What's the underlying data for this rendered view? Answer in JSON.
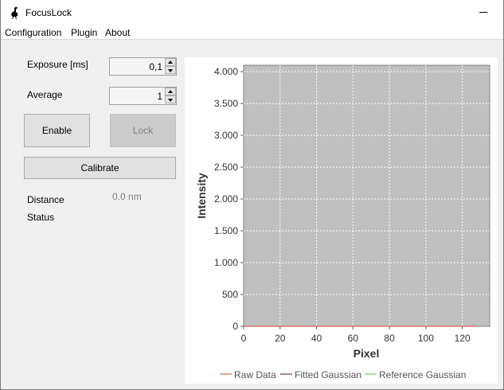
{
  "window": {
    "title": "FocusLock"
  },
  "menu": {
    "items": [
      "Configuration",
      "Plugin",
      "About"
    ]
  },
  "controls": {
    "exposure_label": "Exposure [ms]",
    "exposure_value": "0,1",
    "average_label": "Average",
    "average_value": "1",
    "enable_label": "Enable",
    "lock_label": "Lock",
    "calibrate_label": "Calibrate",
    "distance_label": "Distance",
    "distance_value": "0.0 nm",
    "status_label": "Status"
  },
  "colors": {
    "plot_bg": "#c0c0c0",
    "raw_data": "#e06060",
    "fitted_gaussian": "#6a3a5a",
    "reference_gaussian": "#66cc66"
  },
  "chart_data": {
    "type": "line",
    "xlabel": "Pixel",
    "ylabel": "Intensity",
    "xlim": [
      0,
      135
    ],
    "ylim": [
      0,
      4100
    ],
    "x_ticks": [
      0,
      20,
      40,
      60,
      80,
      100,
      120
    ],
    "y_ticks": [
      0,
      500,
      1000,
      1500,
      2000,
      2500,
      3000,
      3500,
      4000
    ],
    "y_tick_labels": [
      "0",
      "500",
      "1.000",
      "1.500",
      "2.000",
      "2.500",
      "3.000",
      "3.500",
      "4.000"
    ],
    "grid": true,
    "legend_position": "bottom",
    "series": [
      {
        "name": "Raw Data",
        "color": "#e06060",
        "x": [
          0,
          128
        ],
        "values": [
          0,
          0
        ]
      },
      {
        "name": "Fitted Gaussian",
        "color": "#6a3a5a",
        "x": [],
        "values": []
      },
      {
        "name": "Reference Gaussian",
        "color": "#66cc66",
        "x": [],
        "values": []
      }
    ]
  }
}
